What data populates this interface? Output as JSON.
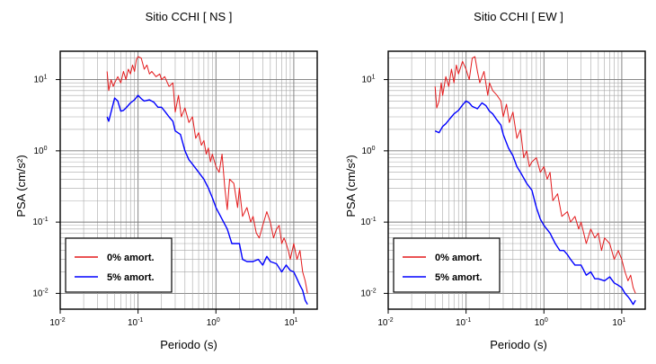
{
  "charts": [
    {
      "title": "Sitio CCHI [ NS ]",
      "xlabel": "Periodo (s)",
      "ylabel": "PSA (cm/s²)"
    },
    {
      "title": "Sitio CCHI [ EW ]",
      "xlabel": "Periodo (s)",
      "ylabel": "PSA (cm/s²)"
    }
  ],
  "chart_data": [
    {
      "type": "line",
      "title": "Sitio CCHI [ NS ]",
      "xlabel": "Periodo (s)",
      "ylabel": "PSA (cm/s2)",
      "xscale": "log",
      "yscale": "log",
      "xlim": [
        0.01,
        20
      ],
      "ylim": [
        0.006,
        25
      ],
      "grid": true,
      "legend_position": "bottom-left",
      "x_tick_labels": [
        "10-2",
        "10-1",
        "100",
        "101"
      ],
      "y_tick_labels": [
        "10-2",
        "10-1",
        "100",
        "101"
      ],
      "series": [
        {
          "name": "0% amort.",
          "color": "#e41a1c",
          "x": [
            0.04,
            0.042,
            0.045,
            0.048,
            0.05,
            0.055,
            0.06,
            0.065,
            0.07,
            0.075,
            0.08,
            0.085,
            0.09,
            0.095,
            0.1,
            0.11,
            0.12,
            0.13,
            0.14,
            0.15,
            0.17,
            0.19,
            0.2,
            0.22,
            0.25,
            0.28,
            0.3,
            0.33,
            0.36,
            0.4,
            0.45,
            0.5,
            0.55,
            0.6,
            0.65,
            0.7,
            0.75,
            0.8,
            0.85,
            0.9,
            1.0,
            1.1,
            1.2,
            1.3,
            1.4,
            1.5,
            1.7,
            1.9,
            2.0,
            2.2,
            2.5,
            2.8,
            3.0,
            3.3,
            3.6,
            4.0,
            4.5,
            5.0,
            5.5,
            6.0,
            6.5,
            7.0,
            7.5,
            8.0,
            8.5,
            9.0,
            10.0,
            11.0,
            12.0,
            13.0,
            14.0,
            15.0
          ],
          "values": [
            13,
            7,
            10,
            8,
            9,
            11,
            9,
            13,
            10,
            14,
            12,
            16,
            13,
            19,
            21,
            20,
            14,
            16,
            12,
            13,
            11,
            12,
            10,
            11,
            8,
            9,
            3.5,
            6,
            3,
            4,
            2.5,
            3,
            1.5,
            1.8,
            1.2,
            1.4,
            0.9,
            1.1,
            0.7,
            0.9,
            0.6,
            0.5,
            0.9,
            0.3,
            0.15,
            0.4,
            0.35,
            0.16,
            0.3,
            0.12,
            0.16,
            0.1,
            0.12,
            0.07,
            0.06,
            0.09,
            0.14,
            0.1,
            0.06,
            0.08,
            0.09,
            0.05,
            0.06,
            0.05,
            0.04,
            0.03,
            0.05,
            0.03,
            0.04,
            0.02,
            0.015,
            0.01
          ]
        },
        {
          "name": "5% amort.",
          "color": "#0000ff",
          "x": [
            0.04,
            0.042,
            0.045,
            0.05,
            0.055,
            0.06,
            0.065,
            0.07,
            0.08,
            0.09,
            0.1,
            0.11,
            0.12,
            0.14,
            0.16,
            0.18,
            0.2,
            0.22,
            0.25,
            0.28,
            0.3,
            0.35,
            0.4,
            0.45,
            0.5,
            0.6,
            0.7,
            0.8,
            0.9,
            1.0,
            1.2,
            1.4,
            1.6,
            1.8,
            2.0,
            2.2,
            2.5,
            3.0,
            3.5,
            4.0,
            4.5,
            5.0,
            6.0,
            7.0,
            8.0,
            9.0,
            10.0,
            11.0,
            12.0,
            13.0,
            14.0,
            15.0
          ],
          "values": [
            3,
            2.6,
            3.5,
            5.5,
            5.0,
            3.6,
            3.7,
            4.0,
            4.7,
            5.2,
            6.0,
            5.4,
            5.0,
            5.2,
            4.8,
            4.1,
            4.1,
            3.6,
            3.0,
            2.6,
            1.9,
            1.7,
            1.0,
            0.75,
            0.65,
            0.5,
            0.4,
            0.3,
            0.22,
            0.16,
            0.11,
            0.08,
            0.05,
            0.05,
            0.05,
            0.03,
            0.028,
            0.028,
            0.03,
            0.025,
            0.033,
            0.028,
            0.026,
            0.02,
            0.025,
            0.021,
            0.02,
            0.016,
            0.013,
            0.011,
            0.008,
            0.007
          ]
        }
      ]
    },
    {
      "type": "line",
      "title": "Sitio CCHI [ EW ]",
      "xlabel": "Periodo (s)",
      "ylabel": "PSA (cm/s2)",
      "xscale": "log",
      "yscale": "log",
      "xlim": [
        0.01,
        20
      ],
      "ylim": [
        0.006,
        25
      ],
      "grid": true,
      "legend_position": "bottom-left",
      "x_tick_labels": [
        "10-2",
        "10-1",
        "100",
        "101"
      ],
      "y_tick_labels": [
        "10-2",
        "10-1",
        "100",
        "101"
      ],
      "series": [
        {
          "name": "0% amort.",
          "color": "#e41a1c",
          "x": [
            0.04,
            0.042,
            0.045,
            0.048,
            0.05,
            0.055,
            0.06,
            0.065,
            0.07,
            0.075,
            0.08,
            0.09,
            0.1,
            0.11,
            0.12,
            0.13,
            0.14,
            0.15,
            0.17,
            0.19,
            0.2,
            0.22,
            0.25,
            0.28,
            0.3,
            0.33,
            0.36,
            0.4,
            0.45,
            0.5,
            0.55,
            0.6,
            0.65,
            0.7,
            0.8,
            0.9,
            1.0,
            1.1,
            1.2,
            1.3,
            1.5,
            1.7,
            2.0,
            2.2,
            2.5,
            2.8,
            3.0,
            3.5,
            4.0,
            4.5,
            5.0,
            5.5,
            6.0,
            7.0,
            8.0,
            9.0,
            10.0,
            11.0,
            12.0,
            13.0,
            14.0,
            15.0
          ],
          "values": [
            8,
            4,
            5,
            9,
            6,
            11,
            8,
            14,
            9,
            16,
            12,
            18,
            14,
            10,
            20,
            21,
            13,
            9,
            13,
            6,
            9,
            7,
            6,
            5,
            3,
            4.5,
            2.5,
            3.5,
            1.5,
            2,
            0.8,
            1,
            0.6,
            0.7,
            0.8,
            0.5,
            0.6,
            0.4,
            0.5,
            0.2,
            0.25,
            0.12,
            0.14,
            0.1,
            0.12,
            0.08,
            0.1,
            0.05,
            0.08,
            0.06,
            0.07,
            0.04,
            0.06,
            0.05,
            0.03,
            0.04,
            0.03,
            0.02,
            0.015,
            0.018,
            0.012,
            0.01
          ]
        },
        {
          "name": "5% amort.",
          "color": "#0000ff",
          "x": [
            0.04,
            0.045,
            0.05,
            0.055,
            0.06,
            0.065,
            0.07,
            0.08,
            0.09,
            0.1,
            0.11,
            0.12,
            0.14,
            0.16,
            0.18,
            0.2,
            0.22,
            0.25,
            0.28,
            0.3,
            0.35,
            0.4,
            0.45,
            0.5,
            0.6,
            0.7,
            0.8,
            0.9,
            1.0,
            1.2,
            1.4,
            1.6,
            1.8,
            2.0,
            2.2,
            2.5,
            3.0,
            3.5,
            4.0,
            4.5,
            5.0,
            6.0,
            7.0,
            8.0,
            9.0,
            10.0,
            11.0,
            12.0,
            13.0,
            14.0,
            15.0
          ],
          "values": [
            1.9,
            1.8,
            2.2,
            2.4,
            2.7,
            3.0,
            3.3,
            3.7,
            4.4,
            5.0,
            4.7,
            4.2,
            3.9,
            4.7,
            4.3,
            3.6,
            3.3,
            2.7,
            2.3,
            1.7,
            1.1,
            0.85,
            0.6,
            0.5,
            0.35,
            0.28,
            0.16,
            0.11,
            0.09,
            0.07,
            0.05,
            0.04,
            0.04,
            0.035,
            0.03,
            0.025,
            0.025,
            0.018,
            0.02,
            0.016,
            0.016,
            0.015,
            0.017,
            0.014,
            0.013,
            0.012,
            0.01,
            0.009,
            0.008,
            0.007,
            0.008
          ]
        }
      ]
    }
  ]
}
